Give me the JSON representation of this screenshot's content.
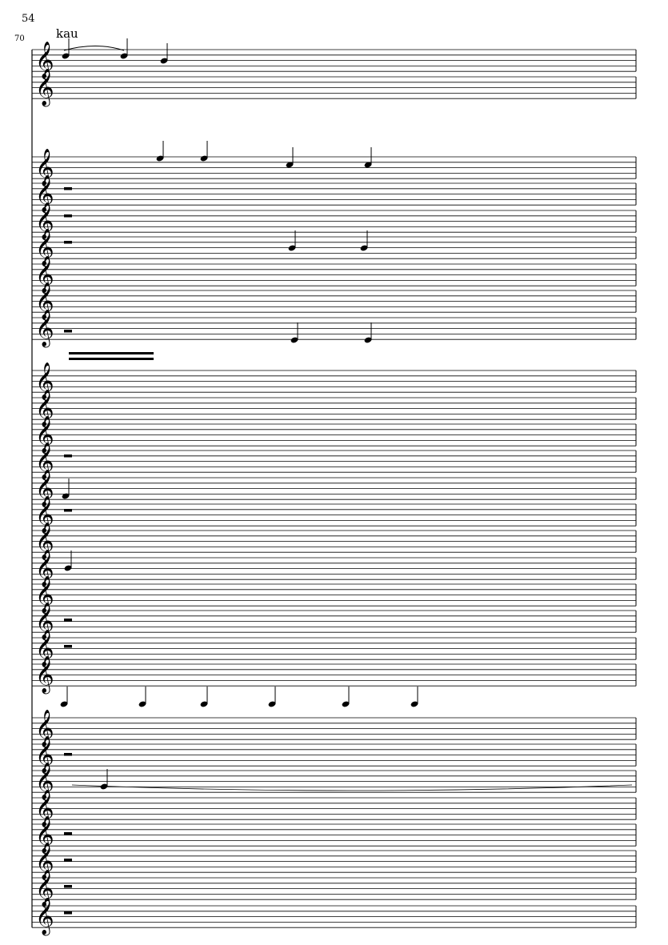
{
  "page": {
    "number": "54"
  },
  "system": {
    "measure_number": "70",
    "lyric": "kau",
    "clef": "treble",
    "staff_count": 29
  },
  "colors": {
    "ink": "#000000",
    "paper": "#ffffff"
  }
}
